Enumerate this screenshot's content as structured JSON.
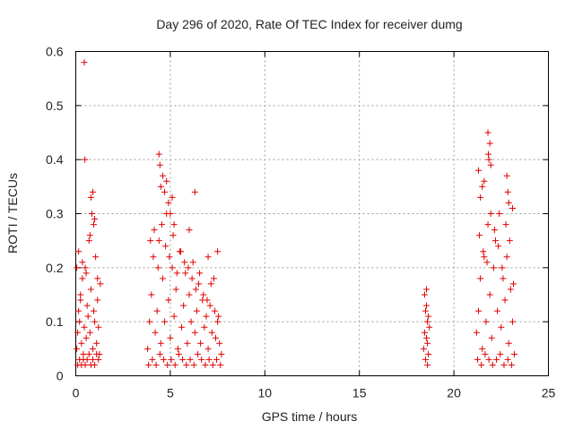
{
  "chart_data": {
    "type": "scatter",
    "title": "Day 296 of 2020, Rate Of TEC Index for receiver dumg",
    "xlabel": "GPS time / hours",
    "ylabel": "ROTI / TECUs",
    "xlim": [
      0,
      25
    ],
    "ylim": [
      0,
      0.6
    ],
    "x_ticks": [
      "0",
      "5",
      "10",
      "15",
      "20",
      "25"
    ],
    "y_ticks": [
      "0",
      "0.1",
      "0.2",
      "0.3",
      "0.4",
      "0.5",
      "0.6"
    ],
    "x_tick_values": [
      0,
      5,
      10,
      15,
      20,
      25
    ],
    "y_tick_values": [
      0,
      0.1,
      0.2,
      0.3,
      0.4,
      0.5,
      0.6
    ],
    "grid": true,
    "marker": "+",
    "color": "#e00000",
    "series": [
      {
        "x": [
          0.05,
          0.1,
          0.15,
          0.2,
          0.25,
          0.3,
          0.35,
          0.4,
          0.45,
          0.5,
          0.55,
          0.6,
          0.65,
          0.7,
          0.75,
          0.8,
          0.85,
          0.9,
          0.95,
          1.0,
          1.05,
          1.1,
          1.15,
          1.2,
          1.25,
          1.3,
          0.1,
          0.2,
          0.3,
          0.4,
          0.5,
          0.6,
          0.7,
          0.8,
          0.9,
          1.0,
          1.1,
          1.2,
          0.15,
          0.35,
          0.55,
          0.75,
          0.95,
          1.15,
          0.45,
          0.48,
          0.8,
          0.9,
          1.0,
          0.05,
          0.25,
          3.8,
          3.9,
          4.0,
          4.1,
          4.2,
          4.3,
          4.4,
          4.5,
          4.6,
          4.7,
          4.8,
          4.9,
          5.0,
          5.1,
          5.2,
          5.3,
          5.4,
          5.5,
          5.6,
          5.7,
          5.8,
          5.9,
          6.0,
          6.1,
          6.2,
          6.3,
          6.4,
          6.5,
          6.6,
          6.7,
          6.8,
          6.9,
          7.0,
          7.1,
          7.2,
          7.3,
          7.4,
          7.5,
          7.6,
          7.7,
          3.85,
          4.05,
          4.25,
          4.45,
          4.65,
          4.85,
          5.05,
          5.25,
          5.45,
          5.65,
          5.85,
          6.05,
          6.25,
          6.45,
          6.65,
          6.85,
          7.05,
          7.25,
          7.45,
          7.65,
          3.95,
          4.15,
          4.35,
          4.55,
          4.75,
          4.95,
          5.15,
          5.35,
          5.55,
          5.75,
          5.95,
          6.15,
          6.35,
          6.55,
          6.75,
          6.95,
          7.15,
          7.35,
          7.55,
          4.4,
          4.45,
          4.5,
          4.6,
          4.7,
          4.8,
          4.9,
          5.0,
          5.1,
          5.2,
          6.0,
          6.3,
          7.0,
          7.5,
          18.4,
          18.45,
          18.5,
          18.55,
          18.6,
          18.65,
          18.7,
          18.45,
          18.55,
          18.65,
          18.5,
          18.6,
          18.55,
          18.6,
          21.2,
          21.3,
          21.4,
          21.5,
          21.6,
          21.7,
          21.8,
          21.9,
          22.0,
          22.1,
          22.2,
          22.3,
          22.4,
          22.5,
          22.6,
          22.7,
          22.8,
          22.9,
          23.0,
          23.1,
          23.2,
          21.25,
          21.45,
          21.65,
          21.85,
          22.05,
          22.25,
          22.45,
          22.65,
          22.85,
          23.05,
          21.35,
          21.55,
          21.75,
          21.95,
          22.15,
          22.35,
          22.55,
          22.75,
          22.95,
          23.15,
          21.8,
          21.82,
          21.85,
          21.9,
          21.95,
          21.5,
          21.6,
          22.8,
          22.85,
          22.9,
          23.1,
          21.3,
          21.4
        ],
        "y": [
          0.05,
          0.08,
          0.12,
          0.1,
          0.15,
          0.06,
          0.18,
          0.04,
          0.09,
          0.2,
          0.07,
          0.13,
          0.11,
          0.25,
          0.08,
          0.16,
          0.3,
          0.05,
          0.12,
          0.1,
          0.22,
          0.06,
          0.14,
          0.09,
          0.04,
          0.17,
          0.02,
          0.03,
          0.02,
          0.03,
          0.02,
          0.03,
          0.04,
          0.02,
          0.03,
          0.02,
          0.04,
          0.03,
          0.23,
          0.21,
          0.19,
          0.26,
          0.28,
          0.18,
          0.58,
          0.4,
          0.33,
          0.34,
          0.29,
          0.2,
          0.14,
          0.05,
          0.1,
          0.15,
          0.22,
          0.08,
          0.12,
          0.25,
          0.06,
          0.18,
          0.1,
          0.3,
          0.14,
          0.07,
          0.2,
          0.11,
          0.16,
          0.05,
          0.23,
          0.09,
          0.13,
          0.19,
          0.06,
          0.15,
          0.1,
          0.21,
          0.08,
          0.12,
          0.17,
          0.06,
          0.14,
          0.09,
          0.11,
          0.05,
          0.13,
          0.08,
          0.18,
          0.07,
          0.1,
          0.06,
          0.04,
          0.02,
          0.03,
          0.02,
          0.04,
          0.03,
          0.02,
          0.03,
          0.02,
          0.04,
          0.03,
          0.02,
          0.03,
          0.02,
          0.04,
          0.03,
          0.02,
          0.03,
          0.02,
          0.03,
          0.02,
          0.25,
          0.27,
          0.2,
          0.28,
          0.24,
          0.22,
          0.26,
          0.19,
          0.23,
          0.21,
          0.2,
          0.18,
          0.16,
          0.19,
          0.15,
          0.14,
          0.17,
          0.12,
          0.11,
          0.41,
          0.39,
          0.35,
          0.37,
          0.34,
          0.36,
          0.32,
          0.3,
          0.33,
          0.28,
          0.27,
          0.34,
          0.22,
          0.23,
          0.05,
          0.08,
          0.12,
          0.07,
          0.1,
          0.04,
          0.09,
          0.15,
          0.16,
          0.11,
          0.03,
          0.06,
          0.13,
          0.02,
          0.08,
          0.12,
          0.18,
          0.05,
          0.22,
          0.1,
          0.28,
          0.15,
          0.07,
          0.2,
          0.25,
          0.12,
          0.3,
          0.09,
          0.18,
          0.14,
          0.22,
          0.06,
          0.16,
          0.1,
          0.04,
          0.03,
          0.02,
          0.04,
          0.03,
          0.02,
          0.03,
          0.04,
          0.02,
          0.03,
          0.02,
          0.26,
          0.23,
          0.21,
          0.3,
          0.27,
          0.24,
          0.2,
          0.28,
          0.25,
          0.17,
          0.45,
          0.41,
          0.4,
          0.43,
          0.39,
          0.35,
          0.36,
          0.37,
          0.34,
          0.32,
          0.31,
          0.38,
          0.33
        ]
      }
    ]
  }
}
